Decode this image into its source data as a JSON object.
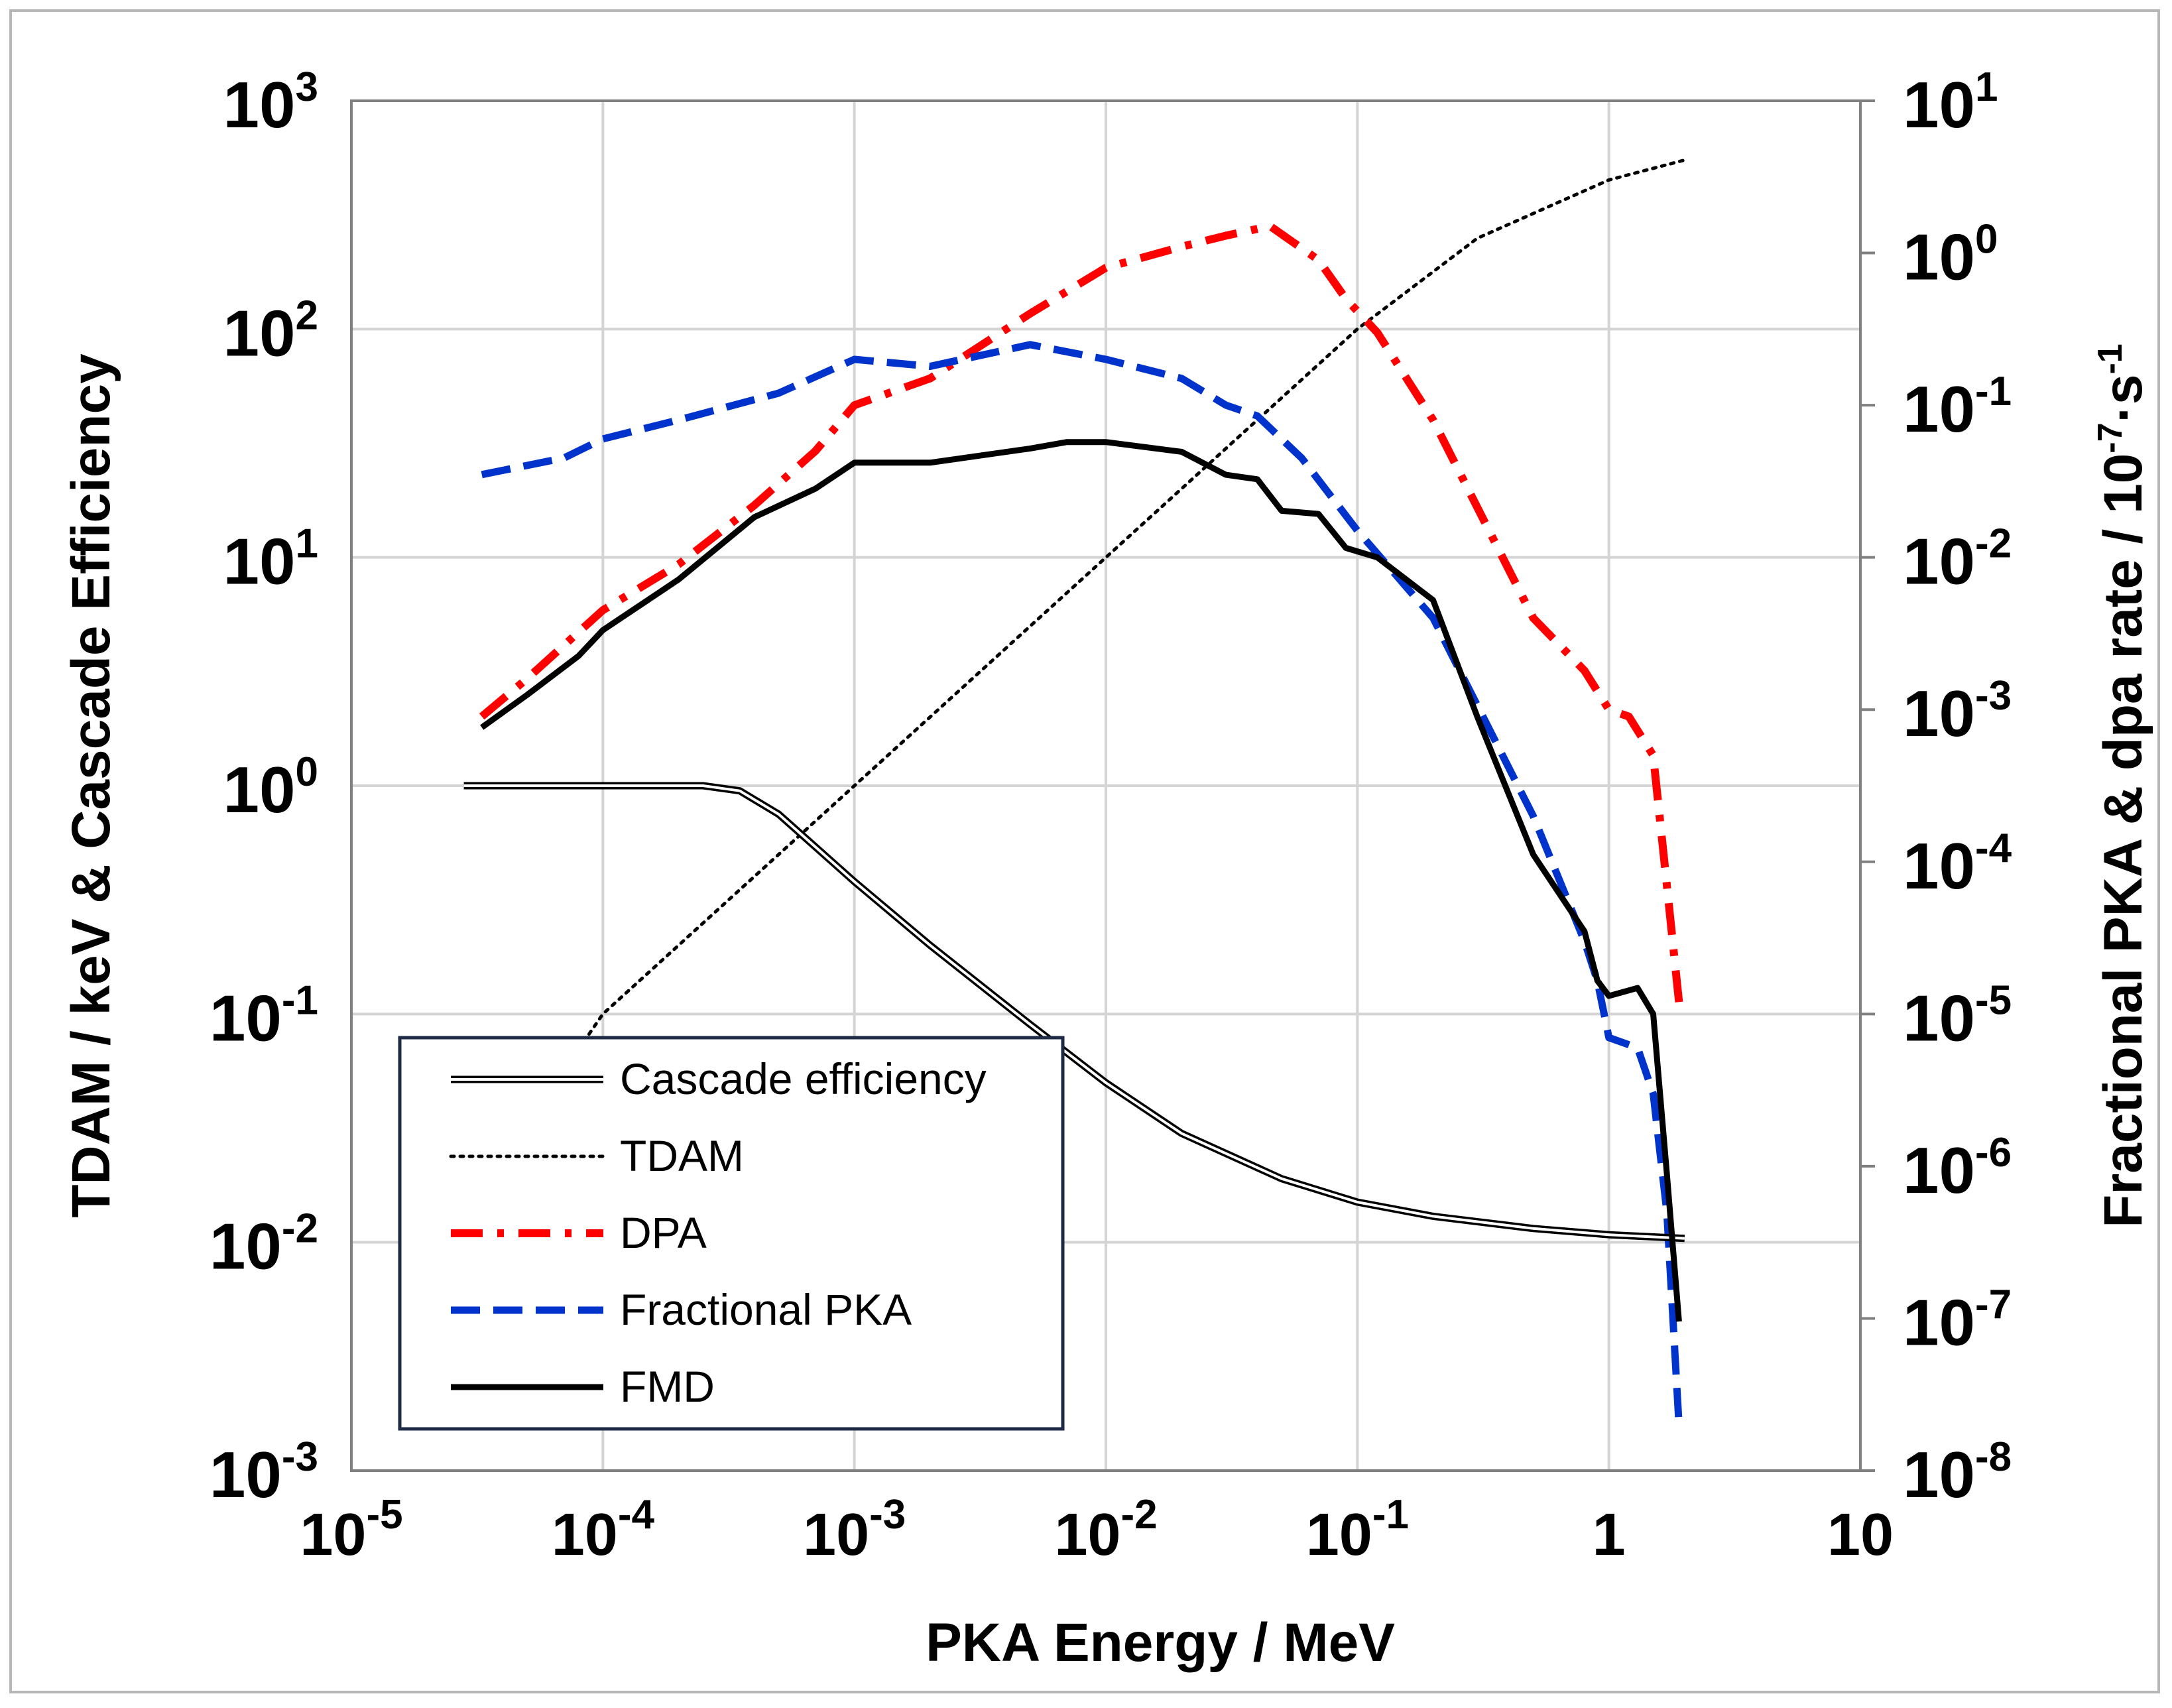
{
  "chart_data": {
    "type": "line",
    "xlabel": "PKA Energy / MeV",
    "ylabel": "TDAM / keV & Cascade Efficiency",
    "y2label": "Fractional PKA & dpa rate / 10",
    "y2label_unit_exp": "-7",
    "y2label_tail": "·s",
    "y2label_tail_exp": "-1",
    "x_scale": "log",
    "y_scale": "log",
    "y2_scale": "log",
    "xlim": [
      1e-05,
      10
    ],
    "ylim": [
      0.001,
      1000
    ],
    "y2lim": [
      1e-08,
      10
    ],
    "grid": true,
    "legend_position": "bottom-left",
    "x_ticks": [
      {
        "base": "10",
        "exp": "-5"
      },
      {
        "base": "10",
        "exp": "-4"
      },
      {
        "base": "10",
        "exp": "-3"
      },
      {
        "base": "10",
        "exp": "-2"
      },
      {
        "base": "10",
        "exp": "-1"
      },
      {
        "base": "1",
        "exp": ""
      },
      {
        "base": "10",
        "exp": ""
      }
    ],
    "y_ticks": [
      {
        "base": "10",
        "exp": "-3"
      },
      {
        "base": "10",
        "exp": "-2"
      },
      {
        "base": "10",
        "exp": "-1"
      },
      {
        "base": "10",
        "exp": "0"
      },
      {
        "base": "10",
        "exp": "1"
      },
      {
        "base": "10",
        "exp": "2"
      },
      {
        "base": "10",
        "exp": "3"
      }
    ],
    "y2_ticks": [
      {
        "base": "10",
        "exp": "-8"
      },
      {
        "base": "10",
        "exp": "-7"
      },
      {
        "base": "10",
        "exp": "-6"
      },
      {
        "base": "10",
        "exp": "-5"
      },
      {
        "base": "10",
        "exp": "-4"
      },
      {
        "base": "10",
        "exp": "-3"
      },
      {
        "base": "10",
        "exp": "-2"
      },
      {
        "base": "10",
        "exp": "-1"
      },
      {
        "base": "10",
        "exp": "0"
      },
      {
        "base": "10",
        "exp": "1"
      }
    ],
    "series": [
      {
        "name": "Cascade efficiency",
        "axis": "left",
        "color": "#000000",
        "style": "double",
        "x": [
          2.8e-05,
          0.0001,
          0.00025,
          0.00035,
          0.0005,
          0.001,
          0.002,
          0.005,
          0.01,
          0.02,
          0.05,
          0.1,
          0.2,
          0.5,
          1,
          2
        ],
        "y": [
          1.0,
          1.0,
          1.0,
          0.95,
          0.75,
          0.38,
          0.2,
          0.09,
          0.05,
          0.03,
          0.019,
          0.015,
          0.013,
          0.0115,
          0.0108,
          0.0104
        ]
      },
      {
        "name": "TDAM",
        "axis": "left",
        "color": "#000000",
        "style": "dotted",
        "x": [
          8e-05,
          0.0001,
          0.001,
          0.01,
          0.03,
          0.1,
          0.3,
          1,
          2
        ],
        "y": [
          0.07,
          0.1,
          1.0,
          10,
          30,
          100,
          250,
          450,
          550
        ]
      },
      {
        "name": "DPA",
        "axis": "right",
        "color": "#ff0000",
        "style": "dashdot",
        "x": [
          3.3e-05,
          5e-05,
          0.0001,
          0.0002,
          0.0004,
          0.0007,
          0.001,
          0.002,
          0.005,
          0.01,
          0.02,
          0.03,
          0.045,
          0.07,
          0.09,
          0.12,
          0.2,
          0.5,
          0.8,
          1.0,
          1.2,
          1.5,
          1.7,
          1.9
        ],
        "y": [
          0.0009,
          0.0016,
          0.0045,
          0.009,
          0.022,
          0.05,
          0.1,
          0.15,
          0.4,
          0.8,
          1.1,
          1.3,
          1.5,
          0.9,
          0.5,
          0.3,
          0.08,
          0.004,
          0.0018,
          0.001,
          0.0009,
          0.0005,
          7e-05,
          1.2e-05
        ]
      },
      {
        "name": "Fractional PKA",
        "axis": "right",
        "color": "#0033cc",
        "style": "dashed",
        "x": [
          3.3e-05,
          7e-05,
          0.0001,
          0.0002,
          0.0005,
          0.001,
          0.002,
          0.005,
          0.01,
          0.02,
          0.03,
          0.04,
          0.06,
          0.1,
          0.2,
          0.5,
          0.8,
          0.9,
          1.0,
          1.3,
          1.5,
          1.7,
          1.9
        ],
        "y": [
          0.035,
          0.045,
          0.06,
          0.08,
          0.12,
          0.2,
          0.18,
          0.25,
          0.2,
          0.15,
          0.1,
          0.085,
          0.045,
          0.015,
          0.004,
          0.0002,
          3e-05,
          1.65e-05,
          7e-06,
          6e-06,
          3e-06,
          5e-07,
          2e-08
        ]
      },
      {
        "name": "FMD",
        "axis": "left",
        "color": "#000000",
        "style": "solid",
        "x": [
          3.3e-05,
          5e-05,
          8e-05,
          0.0001,
          0.0002,
          0.0004,
          0.0007,
          0.001,
          0.002,
          0.005,
          0.007,
          0.01,
          0.02,
          0.03,
          0.04,
          0.05,
          0.07,
          0.09,
          0.12,
          0.2,
          0.3,
          0.5,
          0.8,
          0.9,
          1.0,
          1.3,
          1.5,
          1.7,
          1.9
        ],
        "y": [
          1.8,
          2.5,
          3.7,
          4.8,
          8.0,
          15.0,
          20.0,
          26.0,
          26.0,
          30.0,
          32.0,
          32.0,
          29.0,
          23.0,
          22.0,
          16.0,
          15.5,
          11.0,
          10.0,
          6.5,
          2.0,
          0.5,
          0.23,
          0.14,
          0.12,
          0.13,
          0.1,
          0.02,
          0.0045
        ]
      }
    ]
  }
}
